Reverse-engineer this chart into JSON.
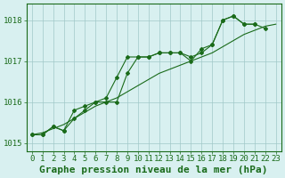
{
  "title": "Graphe pression niveau de la mer (hPa)",
  "xlabel_hours": [
    0,
    1,
    2,
    3,
    4,
    5,
    6,
    7,
    8,
    9,
    10,
    11,
    12,
    13,
    14,
    15,
    16,
    17,
    18,
    19,
    20,
    21,
    22,
    23
  ],
  "series1": [
    1015.2,
    1015.2,
    1015.4,
    1015.3,
    1015.6,
    1015.8,
    1016.0,
    1016.0,
    1016.0,
    1016.7,
    1017.1,
    1017.1,
    1017.2,
    1017.2,
    1017.2,
    1017.1,
    1017.2,
    1017.4,
    1018.0,
    1018.1,
    1017.9,
    1017.9,
    null,
    null
  ],
  "series2": [
    1015.2,
    1015.2,
    1015.4,
    1015.3,
    1015.8,
    1015.9,
    1016.0,
    1016.1,
    1016.6,
    1017.1,
    1017.1,
    1017.1,
    1017.2,
    1017.2,
    1017.2,
    1017.0,
    1017.3,
    1017.4,
    1018.0,
    1018.1,
    1017.9,
    1017.9,
    1017.8,
    null
  ],
  "series_smooth": [
    1015.2,
    1015.25,
    1015.35,
    1015.45,
    1015.6,
    1015.75,
    1015.9,
    1016.0,
    1016.1,
    1016.25,
    1016.4,
    1016.55,
    1016.7,
    1016.8,
    1016.9,
    1017.0,
    1017.1,
    1017.2,
    1017.35,
    1017.5,
    1017.65,
    1017.75,
    1017.85,
    1017.9
  ],
  "line_color": "#1a6b1a",
  "marker_color": "#1a6b1a",
  "bg_color": "#d8f0f0",
  "grid_color": "#a0c8c8",
  "axis_color": "#1a6b1a",
  "ylim": [
    1014.8,
    1018.4
  ],
  "yticks": [
    1015,
    1016,
    1017,
    1018
  ],
  "title_fontsize": 8,
  "tick_fontsize": 6.5,
  "fig_width": 3.2,
  "fig_height": 2.0
}
